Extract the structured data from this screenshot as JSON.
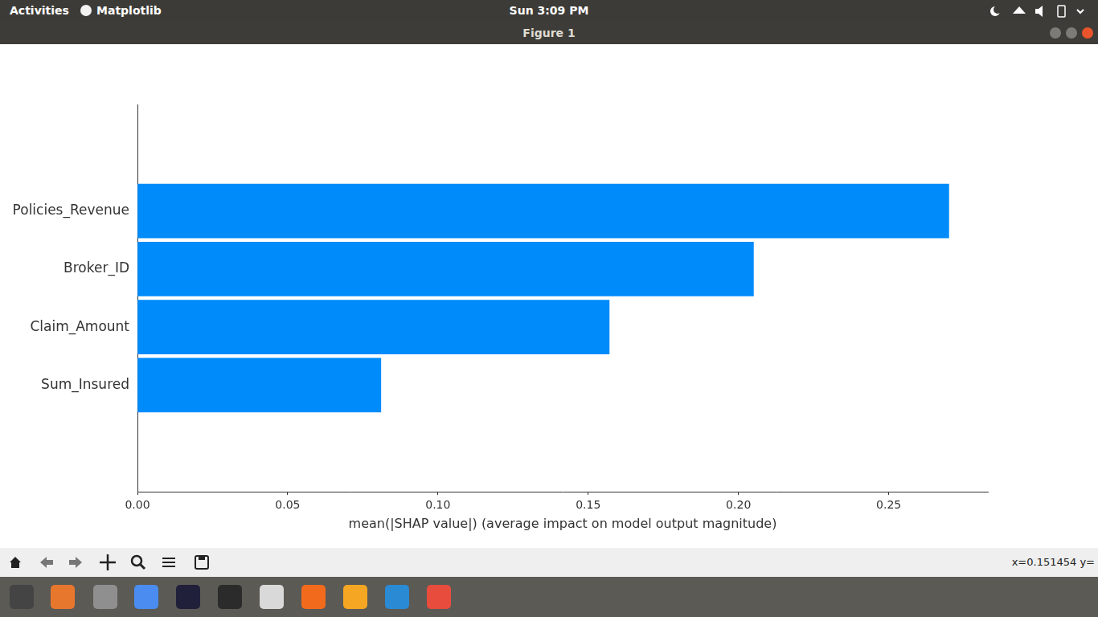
{
  "chart_data": {
    "type": "bar",
    "orientation": "horizontal",
    "categories": [
      "Policies_Revenue",
      "Broker_ID",
      "Claim_Amount",
      "Sum_Insured"
    ],
    "values": [
      0.27,
      0.205,
      0.157,
      0.081
    ],
    "color": "#008bfb",
    "xlabel": "mean(|SHAP value|) (average impact on model output magnitude)",
    "xlim": [
      0,
      0.283
    ],
    "xticks": [
      {
        "value": 0,
        "label": "0.00"
      },
      {
        "value": 0.05,
        "label": "0.05"
      },
      {
        "value": 0.1,
        "label": "0.10"
      },
      {
        "value": 0.15,
        "label": "0.15"
      },
      {
        "value": 0.2,
        "label": "0.20"
      },
      {
        "value": 0.25,
        "label": "0.25"
      }
    ],
    "grid": false
  },
  "screen": {
    "top_bar": {
      "activities": "Activities",
      "app": "Matplotlib",
      "clock": "Sun  3:09 PM"
    },
    "window_title": "Figure 1",
    "cursor_x": "x=0.151454",
    "cursor_y": "y="
  }
}
